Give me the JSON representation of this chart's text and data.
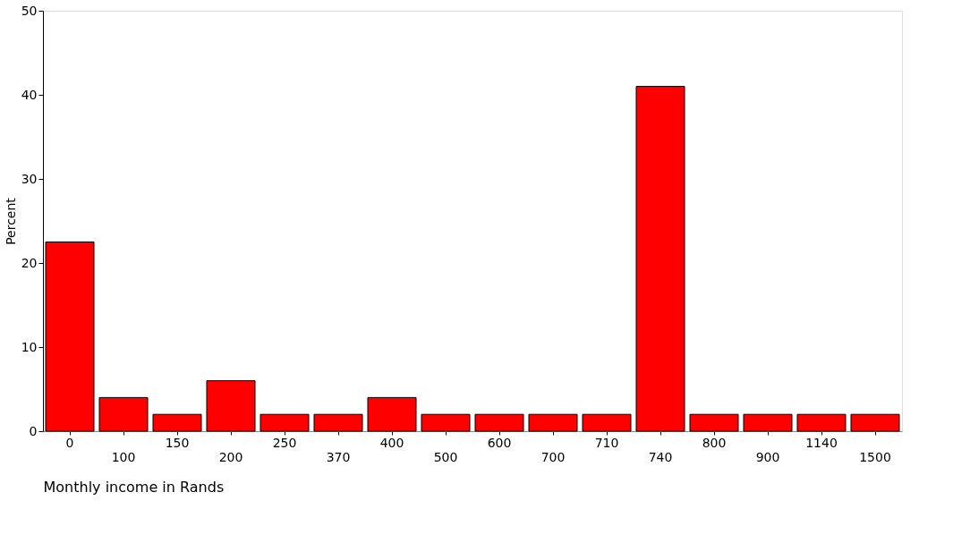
{
  "chart_data": {
    "type": "bar",
    "xlabel": "Monthly income in Rands",
    "ylabel": "Percent",
    "categories": [
      "0",
      "100",
      "150",
      "200",
      "250",
      "370",
      "400",
      "500",
      "600",
      "700",
      "710",
      "740",
      "800",
      "900",
      "1140",
      "1500"
    ],
    "values": [
      22.5,
      4,
      2,
      6,
      2,
      2,
      4,
      2,
      2,
      2,
      2,
      41,
      2,
      2,
      2,
      2
    ],
    "color": "#ff0000",
    "ylim": [
      0,
      50
    ],
    "yticks": [
      0,
      10,
      20,
      30,
      40,
      50
    ],
    "grid": false
  }
}
